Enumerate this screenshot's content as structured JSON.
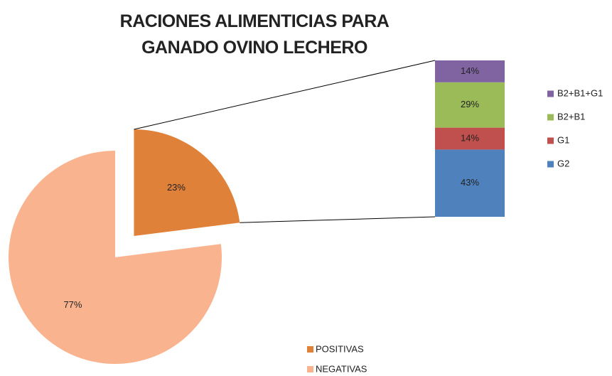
{
  "chart_data": [
    {
      "type": "pie",
      "title": "RACIONES ALIMENTICIAS PARA GANADO OVINO LECHERO",
      "categories": [
        "POSITIVAS",
        "NEGATIVAS"
      ],
      "values": [
        23,
        77
      ],
      "value_labels": [
        "23%",
        "77%"
      ],
      "colors": [
        "#e0813a",
        "#f9b48f"
      ]
    },
    {
      "type": "stacked-bar",
      "series": [
        {
          "name": "G2",
          "color": "#4f81bd",
          "values": [
            43
          ],
          "value_labels": [
            "43%"
          ]
        },
        {
          "name": "G1",
          "color": "#c0504d",
          "values": [
            14
          ],
          "value_labels": [
            "14%"
          ]
        },
        {
          "name": "B2+B1",
          "color": "#9bbb59",
          "values": [
            29
          ],
          "value_labels": [
            "29%"
          ]
        },
        {
          "name": "B2+B1+G1",
          "color": "#8064a2",
          "values": [
            14
          ],
          "value_labels": [
            "14%"
          ]
        }
      ]
    }
  ]
}
